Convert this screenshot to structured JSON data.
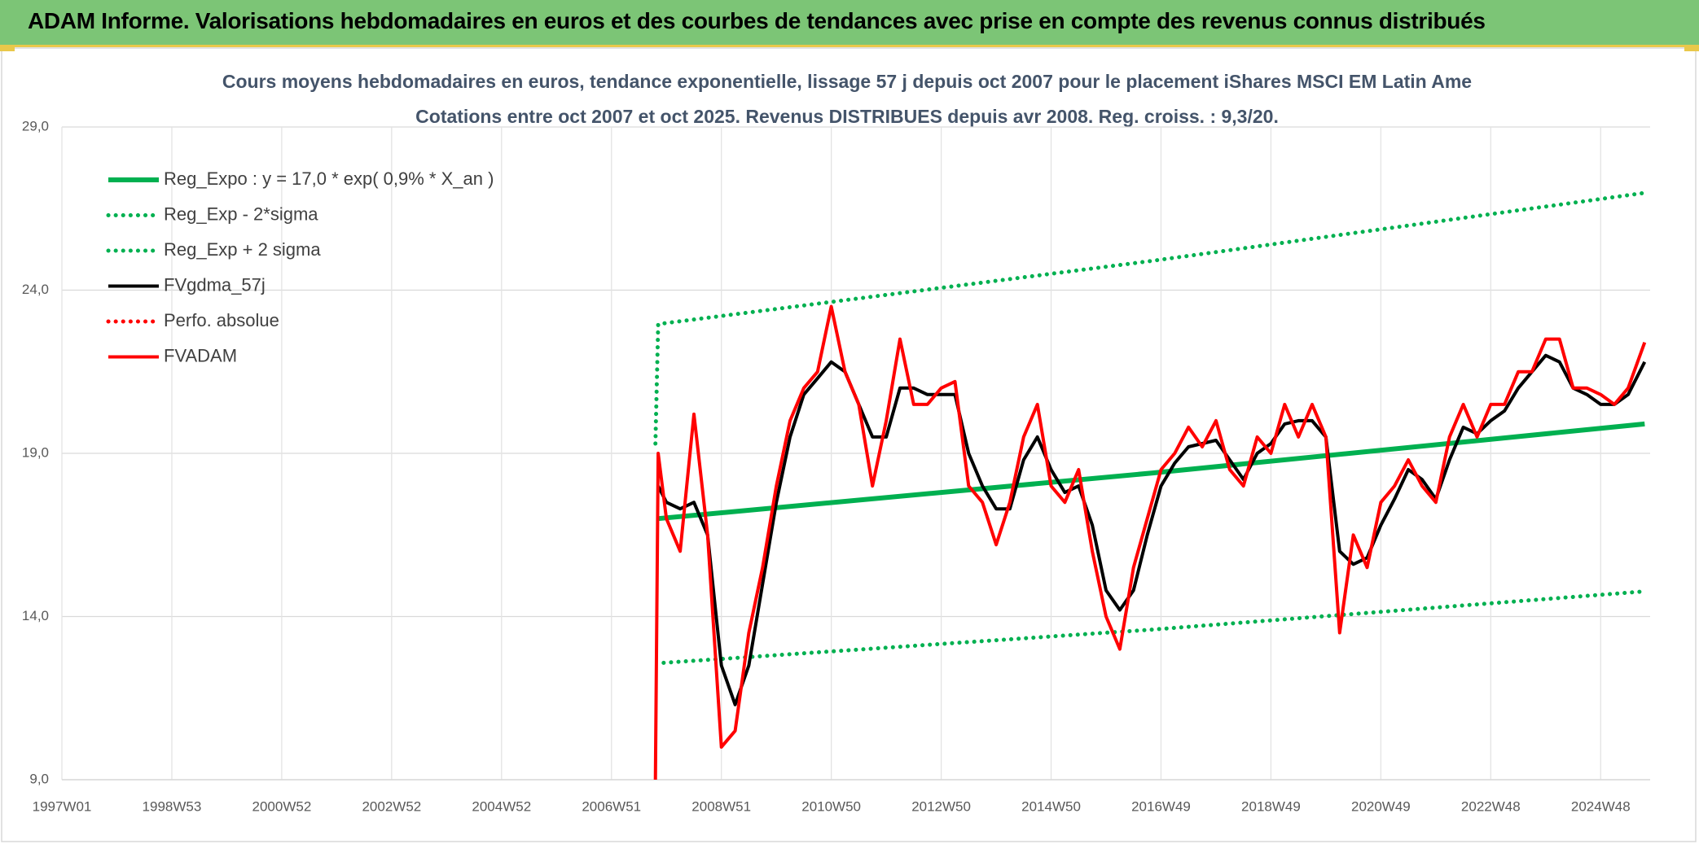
{
  "header": {
    "title": "ADAM Informe. Valorisations hebdomadaires en euros et des courbes de tendances avec prise en compte des revenus connus distribués"
  },
  "chart_data": {
    "type": "line",
    "title": "Cours moyens hebdomadaires en euros, tendance exponentielle, lissage 57 j depuis oct 2007 pour le placement iShares MSCI EM Latin Ame",
    "subtitle": "Cotations entre oct 2007 et oct 2025. Revenus DISTRIBUES depuis avr 2008. Reg. croiss. : 9,3/20.",
    "grid": true,
    "legend": "top-left",
    "xlim": [
      1997,
      2025.9
    ],
    "xticks": [
      {
        "value": 1997,
        "label": "1997W01"
      },
      {
        "value": 1999,
        "label": "1998W53"
      },
      {
        "value": 2001,
        "label": "2000W52"
      },
      {
        "value": 2003,
        "label": "2002W52"
      },
      {
        "value": 2005,
        "label": "2004W52"
      },
      {
        "value": 2007,
        "label": "2006W51"
      },
      {
        "value": 2009,
        "label": "2008W51"
      },
      {
        "value": 2011,
        "label": "2010W50"
      },
      {
        "value": 2013,
        "label": "2012W50"
      },
      {
        "value": 2015,
        "label": "2014W50"
      },
      {
        "value": 2017,
        "label": "2016W49"
      },
      {
        "value": 2019,
        "label": "2018W49"
      },
      {
        "value": 2021,
        "label": "2020W49"
      },
      {
        "value": 2023,
        "label": "2022W48"
      },
      {
        "value": 2025,
        "label": "2024W48"
      }
    ],
    "ylim": [
      9,
      29
    ],
    "yticks": [
      {
        "value": 9,
        "label": "9,0"
      },
      {
        "value": 14,
        "label": "14,0"
      },
      {
        "value": 19,
        "label": "19,0"
      },
      {
        "value": 24,
        "label": "24,0"
      },
      {
        "value": 29,
        "label": "29,0"
      }
    ],
    "x": [
      2007.8,
      2007.85,
      2008.0,
      2008.25,
      2008.5,
      2008.75,
      2009.0,
      2009.25,
      2009.5,
      2009.75,
      2010.0,
      2010.25,
      2010.5,
      2010.75,
      2011.0,
      2011.25,
      2011.5,
      2011.75,
      2012.0,
      2012.25,
      2012.5,
      2012.75,
      2013.0,
      2013.25,
      2013.5,
      2013.75,
      2014.0,
      2014.25,
      2014.5,
      2014.75,
      2015.0,
      2015.25,
      2015.5,
      2015.75,
      2016.0,
      2016.25,
      2016.5,
      2016.75,
      2017.0,
      2017.25,
      2017.5,
      2017.75,
      2018.0,
      2018.25,
      2018.5,
      2018.75,
      2019.0,
      2019.25,
      2019.5,
      2019.75,
      2020.0,
      2020.25,
      2020.5,
      2020.75,
      2021.0,
      2021.25,
      2021.5,
      2021.75,
      2022.0,
      2022.25,
      2022.5,
      2022.75,
      2023.0,
      2023.25,
      2023.5,
      2023.75,
      2024.0,
      2024.25,
      2024.5,
      2024.75,
      2025.0,
      2025.25,
      2025.5,
      2025.8
    ],
    "series": [
      {
        "name": "Reg_Expo : y = 17,0 * exp( 0,9% *  X_an )",
        "color": "#00b050",
        "style": "solid",
        "x": [
          2007.85,
          2016.85,
          2025.8
        ],
        "values": [
          17.0,
          18.4,
          19.9
        ]
      },
      {
        "name": "Reg_Exp - 2*sigma",
        "color": "#00b050",
        "style": "dotted",
        "x": [
          2007.95,
          2016.85,
          2025.8
        ],
        "values": [
          12.58,
          13.6,
          14.77
        ]
      },
      {
        "name": "Reg_Exp + 2 sigma",
        "color": "#00b050",
        "style": "dotted",
        "x": [
          2007.8,
          2007.85,
          2016.85,
          2025.8
        ],
        "values": [
          19.3,
          22.96,
          24.9,
          26.98
        ]
      },
      {
        "name": "FVgdma_57j",
        "color": "#000000",
        "style": "solid",
        "values": [
          null,
          18.0,
          17.5,
          17.3,
          17.5,
          16.5,
          12.5,
          11.3,
          12.5,
          15.0,
          17.5,
          19.5,
          20.8,
          21.3,
          21.8,
          21.5,
          20.5,
          19.5,
          19.5,
          21.0,
          21.0,
          20.8,
          20.8,
          20.8,
          19.0,
          18.0,
          17.3,
          17.3,
          18.8,
          19.5,
          18.5,
          17.8,
          18.0,
          16.8,
          14.8,
          14.2,
          14.8,
          16.5,
          18.0,
          18.7,
          19.2,
          19.3,
          19.4,
          18.8,
          18.2,
          19.0,
          19.3,
          19.9,
          20.0,
          20.0,
          19.5,
          16.0,
          15.6,
          15.8,
          16.8,
          17.6,
          18.5,
          18.2,
          17.6,
          18.8,
          19.8,
          19.6,
          20.0,
          20.3,
          21.0,
          21.5,
          22.0,
          21.8,
          21.0,
          20.8,
          20.5,
          20.5,
          20.8,
          21.8
        ]
      },
      {
        "name": "Perfo. absolue",
        "color": "#ff0000",
        "style": "dotted",
        "x": [],
        "values": []
      },
      {
        "name": "FVADAM",
        "color": "#ff0000",
        "style": "solid",
        "values": [
          9.0,
          19.0,
          17.0,
          16.0,
          20.2,
          16.5,
          10.0,
          10.5,
          13.5,
          15.5,
          18.0,
          20.0,
          21.0,
          21.5,
          23.5,
          21.5,
          20.5,
          18.0,
          20.0,
          22.5,
          20.5,
          20.5,
          21.0,
          21.2,
          18.0,
          17.5,
          16.2,
          17.5,
          19.5,
          20.5,
          18.0,
          17.5,
          18.5,
          16.0,
          14.0,
          13.0,
          15.5,
          17.0,
          18.5,
          19.0,
          19.8,
          19.2,
          20.0,
          18.5,
          18.0,
          19.5,
          19.0,
          20.5,
          19.5,
          20.5,
          19.5,
          13.5,
          16.5,
          15.5,
          17.5,
          18.0,
          18.8,
          18.0,
          17.5,
          19.5,
          20.5,
          19.5,
          20.5,
          20.5,
          21.5,
          21.5,
          22.5,
          22.5,
          21.0,
          21.0,
          20.8,
          20.5,
          21.0,
          22.4
        ]
      }
    ]
  }
}
